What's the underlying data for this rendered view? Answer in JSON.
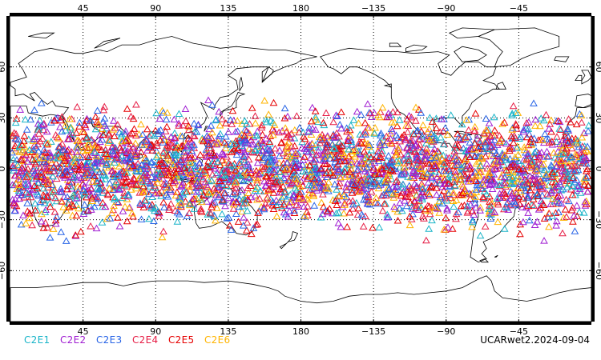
{
  "map": {
    "projection": "cylindrical-equidistant",
    "central_longitude": 180,
    "lon_range": [
      -0.5,
      360
    ],
    "lat_range": [
      -90,
      90
    ],
    "grid": "dotted",
    "coastlines": true,
    "longitude_ticks": [
      {
        "lon": 45,
        "label": "45"
      },
      {
        "lon": 90,
        "label": "90"
      },
      {
        "lon": 135,
        "label": "135"
      },
      {
        "lon": 180,
        "label": "180"
      },
      {
        "lon": 225,
        "label": "−135"
      },
      {
        "lon": 270,
        "label": "−90"
      },
      {
        "lon": 315,
        "label": "−45"
      }
    ],
    "latitude_ticks": [
      {
        "lat": 60,
        "label": "60"
      },
      {
        "lat": 30,
        "label": "30"
      },
      {
        "lat": 0,
        "label": "0"
      },
      {
        "lat": -30,
        "label": "−30"
      },
      {
        "lat": -60,
        "label": "−60"
      }
    ]
  },
  "chart_data": {
    "type": "scatter",
    "marker": "open-triangle",
    "series": [
      {
        "name": "C2E1",
        "color": "#19b4c8"
      },
      {
        "name": "C2E2",
        "color": "#a01ed2"
      },
      {
        "name": "C2E3",
        "color": "#2864e6"
      },
      {
        "name": "C2E4",
        "color": "#e61e46"
      },
      {
        "name": "C2E5",
        "color": "#e60000"
      },
      {
        "name": "C2E6",
        "color": "#ffb400"
      }
    ],
    "spatial_distribution": {
      "lat_min": -45,
      "lat_max": 47,
      "lon_min": 0,
      "lon_max": 360,
      "density_peak_lat": 0
    }
  },
  "legend": [
    "C2E1",
    "C2E2",
    "C2E3",
    "C2E4",
    "C2E5",
    "C2E6"
  ],
  "footer": {
    "label": "UCARwet2.2024-09-04"
  }
}
